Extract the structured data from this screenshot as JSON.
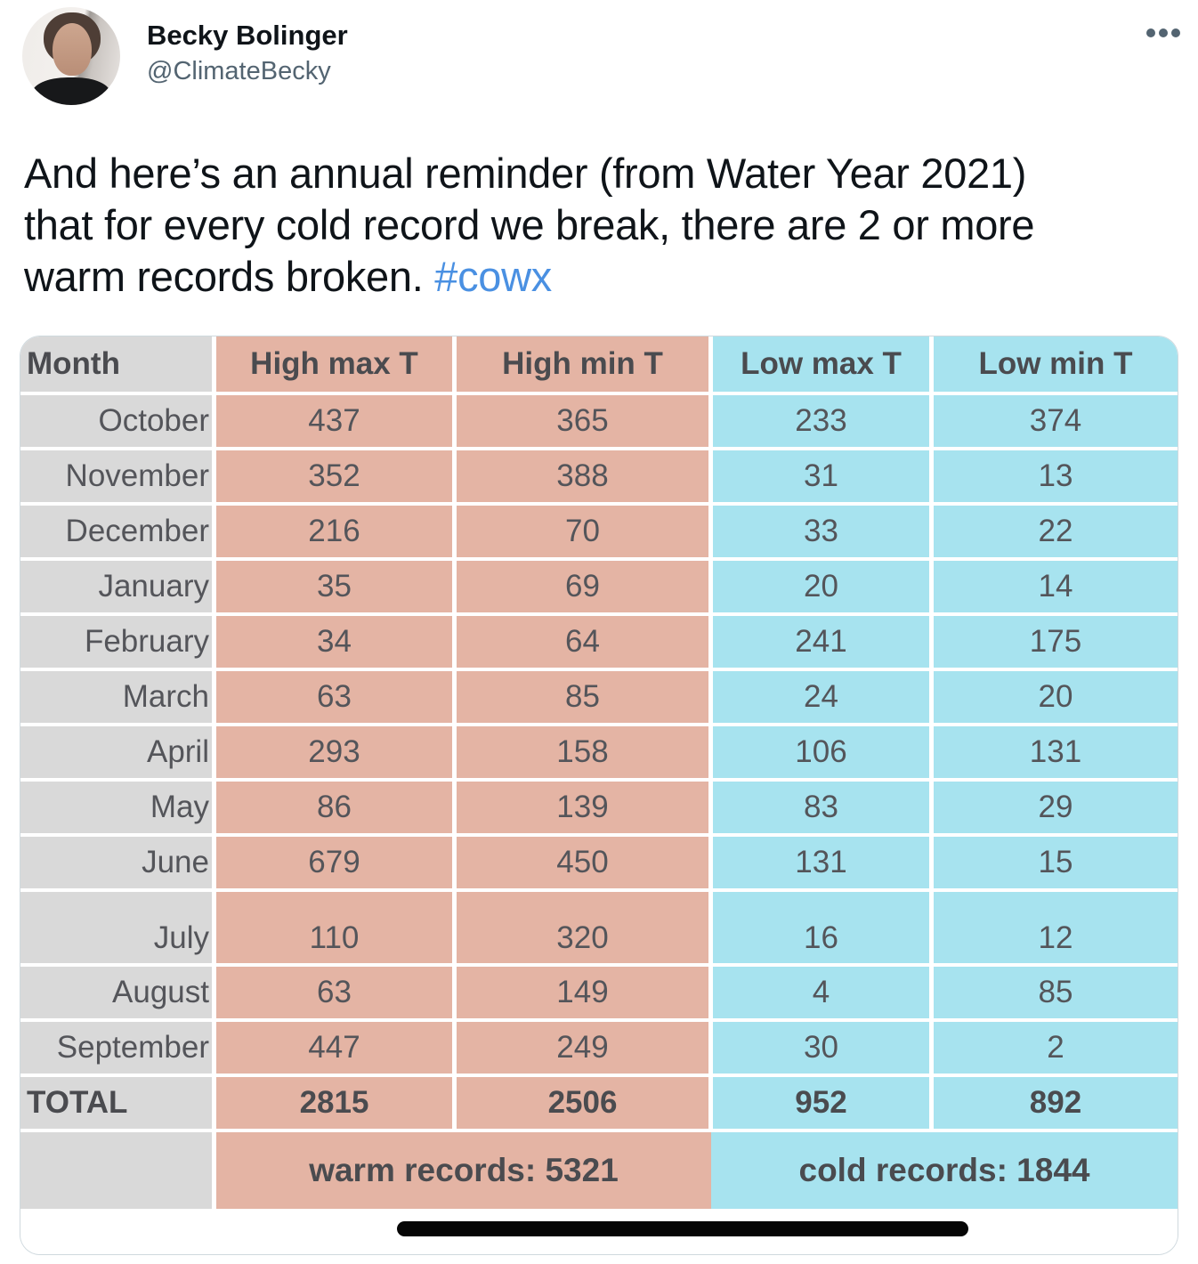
{
  "header": {
    "display_name": "Becky Bolinger",
    "handle": "@ClimateBecky"
  },
  "tweet": {
    "line1": "And here’s an annual reminder (from Water Year 2021)",
    "line2": "that for every cold record we break, there are 2 or more",
    "line3_prefix": "warm records broken. ",
    "hashtag": "#cowx",
    "link_color": "#4a90e2",
    "text_color": "#0f1419"
  },
  "table": {
    "columns": [
      "Month",
      "High max T",
      "High min T",
      "Low max T",
      "Low min T"
    ],
    "rows": [
      {
        "month": "October",
        "values": [
          437,
          365,
          233,
          374
        ]
      },
      {
        "month": "November",
        "values": [
          352,
          388,
          31,
          13
        ]
      },
      {
        "month": "December",
        "values": [
          216,
          70,
          33,
          22
        ]
      },
      {
        "month": "January",
        "values": [
          35,
          69,
          20,
          14
        ]
      },
      {
        "month": "February",
        "values": [
          34,
          64,
          241,
          175
        ]
      },
      {
        "month": "March",
        "values": [
          63,
          85,
          24,
          20
        ]
      },
      {
        "month": "April",
        "values": [
          293,
          158,
          106,
          131
        ]
      },
      {
        "month": "May",
        "values": [
          86,
          139,
          83,
          29
        ]
      },
      {
        "month": "June",
        "values": [
          679,
          450,
          131,
          15
        ]
      },
      {
        "month": "July",
        "values": [
          110,
          320,
          16,
          12
        ],
        "tall": true
      },
      {
        "month": "August",
        "values": [
          63,
          149,
          4,
          85
        ]
      },
      {
        "month": "September",
        "values": [
          447,
          249,
          30,
          2
        ]
      }
    ],
    "total": {
      "label": "TOTAL",
      "values": [
        2815,
        2506,
        952,
        892
      ]
    },
    "footer": {
      "warm": "warm records: 5321",
      "cold": "cold records: 1844"
    },
    "colors": {
      "warm": "#e4b4a4",
      "cool": "#a7e3ef",
      "month_column": "#d9d9d9",
      "cell_text": "#54555a"
    }
  },
  "chart_data": {
    "type": "table",
    "title": "",
    "categories": [
      "October",
      "November",
      "December",
      "January",
      "February",
      "March",
      "April",
      "May",
      "June",
      "July",
      "August",
      "September"
    ],
    "series": [
      {
        "name": "High max T",
        "values": [
          437,
          352,
          216,
          35,
          34,
          63,
          293,
          86,
          679,
          110,
          63,
          447
        ]
      },
      {
        "name": "High min T",
        "values": [
          365,
          388,
          70,
          69,
          64,
          85,
          158,
          139,
          450,
          320,
          149,
          249
        ]
      },
      {
        "name": "Low max T",
        "values": [
          233,
          31,
          33,
          20,
          241,
          24,
          106,
          83,
          131,
          16,
          4,
          30
        ]
      },
      {
        "name": "Low min T",
        "values": [
          374,
          13,
          22,
          14,
          175,
          20,
          131,
          29,
          15,
          12,
          85,
          2
        ]
      }
    ],
    "totals": {
      "High max T": 2815,
      "High min T": 2506,
      "Low max T": 952,
      "Low min T": 892
    },
    "warm_records_total": 5321,
    "cold_records_total": 1844
  }
}
